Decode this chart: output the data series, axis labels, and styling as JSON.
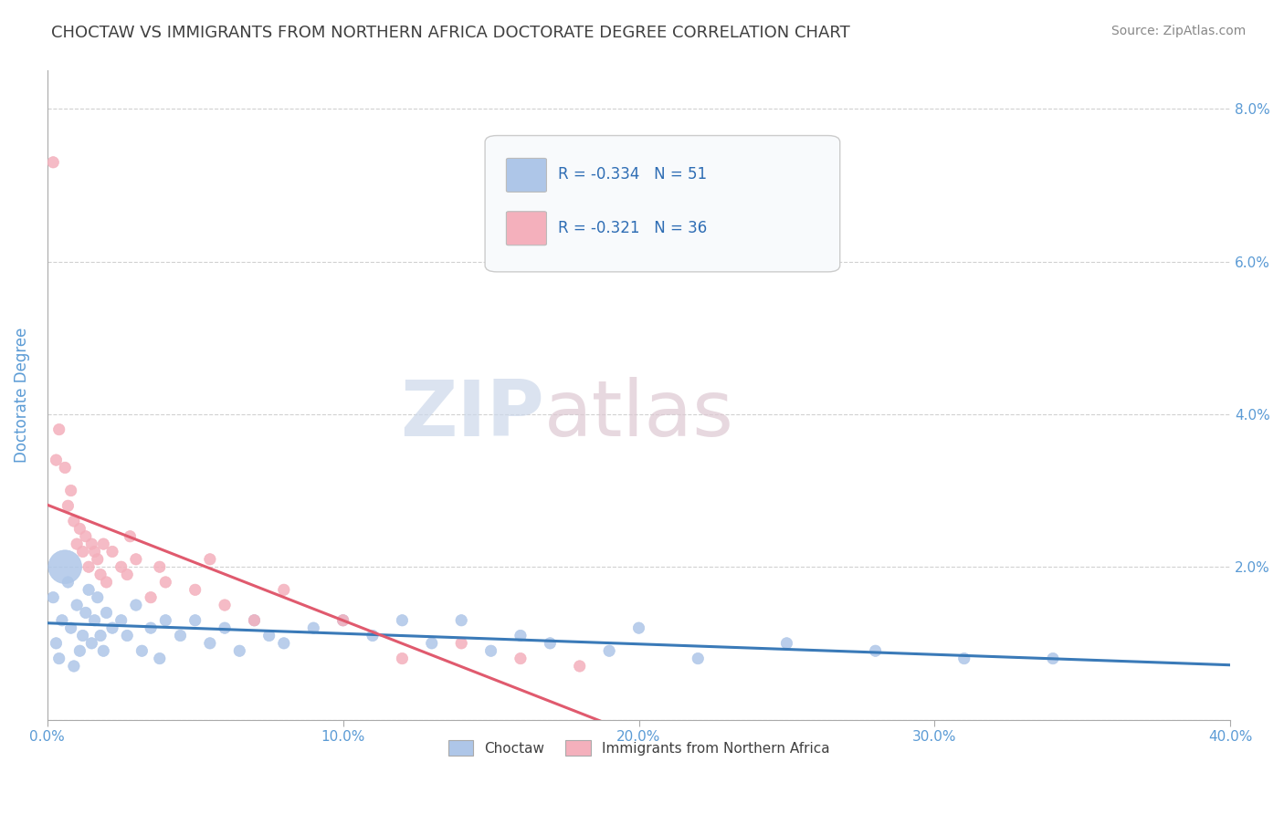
{
  "title": "CHOCTAW VS IMMIGRANTS FROM NORTHERN AFRICA DOCTORATE DEGREE CORRELATION CHART",
  "source": "Source: ZipAtlas.com",
  "ylabel": "Doctorate Degree",
  "xlabel": "",
  "xlim": [
    0.0,
    0.4
  ],
  "ylim": [
    0.0,
    0.085
  ],
  "yticks": [
    0.0,
    0.02,
    0.04,
    0.06,
    0.08
  ],
  "ytick_labels_right": [
    "",
    "2.0%",
    "4.0%",
    "6.0%",
    "8.0%"
  ],
  "xticks": [
    0.0,
    0.1,
    0.2,
    0.3,
    0.4
  ],
  "xtick_labels": [
    "0.0%",
    "10.0%",
    "20.0%",
    "30.0%",
    "40.0%"
  ],
  "legend_labels": [
    "Choctaw",
    "Immigrants from Northern Africa"
  ],
  "choctaw_color": "#aec6e8",
  "choctaw_line_color": "#3a7ab8",
  "nafrica_color": "#f4b0bc",
  "nafrica_line_color": "#e05a6e",
  "choctaw_R": -0.334,
  "choctaw_N": 51,
  "nafrica_R": -0.321,
  "nafrica_N": 36,
  "choctaw_points": [
    [
      0.002,
      0.016
    ],
    [
      0.003,
      0.01
    ],
    [
      0.004,
      0.008
    ],
    [
      0.005,
      0.013
    ],
    [
      0.007,
      0.018
    ],
    [
      0.008,
      0.012
    ],
    [
      0.01,
      0.015
    ],
    [
      0.011,
      0.009
    ],
    [
      0.012,
      0.011
    ],
    [
      0.013,
      0.014
    ],
    [
      0.014,
      0.017
    ],
    [
      0.015,
      0.01
    ],
    [
      0.016,
      0.013
    ],
    [
      0.017,
      0.016
    ],
    [
      0.018,
      0.011
    ],
    [
      0.019,
      0.009
    ],
    [
      0.02,
      0.014
    ],
    [
      0.022,
      0.012
    ],
    [
      0.025,
      0.013
    ],
    [
      0.027,
      0.011
    ],
    [
      0.03,
      0.015
    ],
    [
      0.032,
      0.009
    ],
    [
      0.035,
      0.012
    ],
    [
      0.038,
      0.008
    ],
    [
      0.04,
      0.013
    ],
    [
      0.045,
      0.011
    ],
    [
      0.05,
      0.013
    ],
    [
      0.055,
      0.01
    ],
    [
      0.06,
      0.012
    ],
    [
      0.065,
      0.009
    ],
    [
      0.07,
      0.013
    ],
    [
      0.075,
      0.011
    ],
    [
      0.08,
      0.01
    ],
    [
      0.09,
      0.012
    ],
    [
      0.1,
      0.013
    ],
    [
      0.11,
      0.011
    ],
    [
      0.12,
      0.013
    ],
    [
      0.13,
      0.01
    ],
    [
      0.14,
      0.013
    ],
    [
      0.15,
      0.009
    ],
    [
      0.16,
      0.011
    ],
    [
      0.17,
      0.01
    ],
    [
      0.19,
      0.009
    ],
    [
      0.2,
      0.012
    ],
    [
      0.22,
      0.008
    ],
    [
      0.25,
      0.01
    ],
    [
      0.28,
      0.009
    ],
    [
      0.31,
      0.008
    ],
    [
      0.34,
      0.008
    ],
    [
      0.006,
      0.02
    ],
    [
      0.009,
      0.007
    ]
  ],
  "choctaw_sizes": [
    80,
    80,
    80,
    80,
    80,
    80,
    80,
    80,
    80,
    80,
    80,
    80,
    80,
    80,
    80,
    80,
    80,
    80,
    80,
    80,
    80,
    80,
    80,
    80,
    80,
    80,
    80,
    80,
    80,
    80,
    80,
    80,
    80,
    80,
    80,
    80,
    80,
    80,
    80,
    80,
    80,
    80,
    80,
    80,
    80,
    80,
    80,
    80,
    80,
    700,
    80
  ],
  "nafrica_points": [
    [
      0.002,
      0.073
    ],
    [
      0.004,
      0.038
    ],
    [
      0.006,
      0.033
    ],
    [
      0.007,
      0.028
    ],
    [
      0.008,
      0.03
    ],
    [
      0.009,
      0.026
    ],
    [
      0.01,
      0.023
    ],
    [
      0.011,
      0.025
    ],
    [
      0.012,
      0.022
    ],
    [
      0.013,
      0.024
    ],
    [
      0.014,
      0.02
    ],
    [
      0.015,
      0.023
    ],
    [
      0.016,
      0.022
    ],
    [
      0.017,
      0.021
    ],
    [
      0.018,
      0.019
    ],
    [
      0.019,
      0.023
    ],
    [
      0.02,
      0.018
    ],
    [
      0.022,
      0.022
    ],
    [
      0.025,
      0.02
    ],
    [
      0.027,
      0.019
    ],
    [
      0.03,
      0.021
    ],
    [
      0.035,
      0.016
    ],
    [
      0.038,
      0.02
    ],
    [
      0.04,
      0.018
    ],
    [
      0.05,
      0.017
    ],
    [
      0.055,
      0.021
    ],
    [
      0.06,
      0.015
    ],
    [
      0.07,
      0.013
    ],
    [
      0.08,
      0.017
    ],
    [
      0.1,
      0.013
    ],
    [
      0.12,
      0.008
    ],
    [
      0.14,
      0.01
    ],
    [
      0.16,
      0.008
    ],
    [
      0.18,
      0.007
    ],
    [
      0.003,
      0.034
    ],
    [
      0.028,
      0.024
    ]
  ],
  "nafrica_sizes": [
    80,
    80,
    80,
    80,
    80,
    80,
    80,
    80,
    80,
    80,
    80,
    80,
    80,
    80,
    80,
    80,
    80,
    80,
    80,
    80,
    80,
    80,
    80,
    80,
    80,
    80,
    80,
    80,
    80,
    80,
    80,
    80,
    80,
    80,
    80,
    80
  ],
  "watermark_zip_color": "#ccd8ea",
  "watermark_atlas_color": "#d8c8d0",
  "background_color": "#ffffff",
  "grid_color": "#cccccc",
  "title_color": "#404040",
  "axis_label_color": "#5b9bd5",
  "tick_color": "#5b9bd5",
  "stats_box_color": "#f0f4fa",
  "stats_box_border": "#cccccc",
  "stats_text_color": "#2e6db4"
}
